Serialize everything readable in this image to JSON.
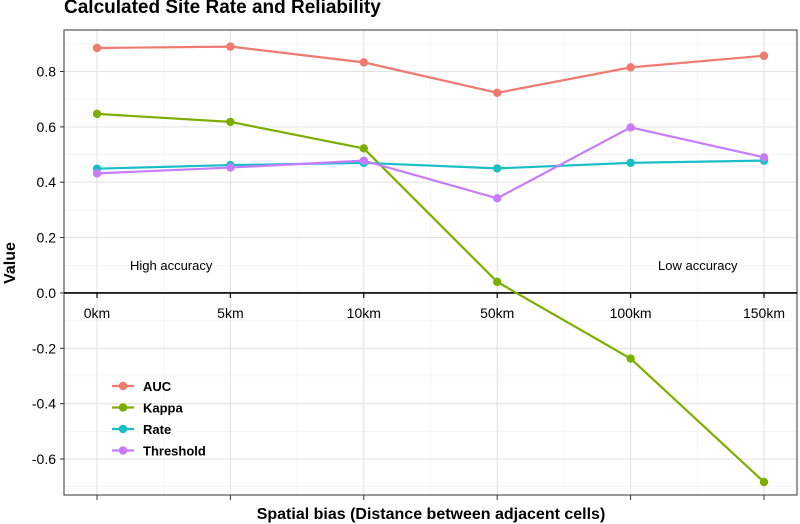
{
  "chart_data": {
    "type": "line",
    "title": "Calculated Site Rate and Reliability",
    "xlabel": "Spatial bias (Distance between adjacent cells)",
    "ylabel": "Value",
    "categories": [
      "0km",
      "5km",
      "10km",
      "50km",
      "100km",
      "150km"
    ],
    "ylim": [
      -0.73,
      0.95
    ],
    "yticks": [
      0.8,
      0.6,
      0.4,
      0.2,
      0.0,
      -0.2,
      -0.4,
      -0.6
    ],
    "ytick_labels": [
      "0.8",
      "0.6",
      "0.4",
      "0.2",
      "0.0",
      "-0.2",
      "-0.4",
      "-0.6"
    ],
    "grid": true,
    "legend_position": "bottom-left",
    "series": [
      {
        "name": "AUC",
        "color": "#F07A70",
        "values": [
          0.885,
          0.89,
          0.833,
          0.723,
          0.815,
          0.857
        ]
      },
      {
        "name": "Kappa",
        "color": "#7CAE00",
        "values": [
          0.647,
          0.618,
          0.522,
          0.04,
          -0.237,
          -0.683
        ]
      },
      {
        "name": "Rate",
        "color": "#19BFC4",
        "values": [
          0.449,
          0.462,
          0.47,
          0.45,
          0.47,
          0.478
        ]
      },
      {
        "name": "Threshold",
        "color": "#C77CFF",
        "values": [
          0.432,
          0.453,
          0.478,
          0.342,
          0.598,
          0.49
        ]
      }
    ],
    "annotations": {
      "left": "High accuracy",
      "right": "Low accuracy"
    }
  }
}
